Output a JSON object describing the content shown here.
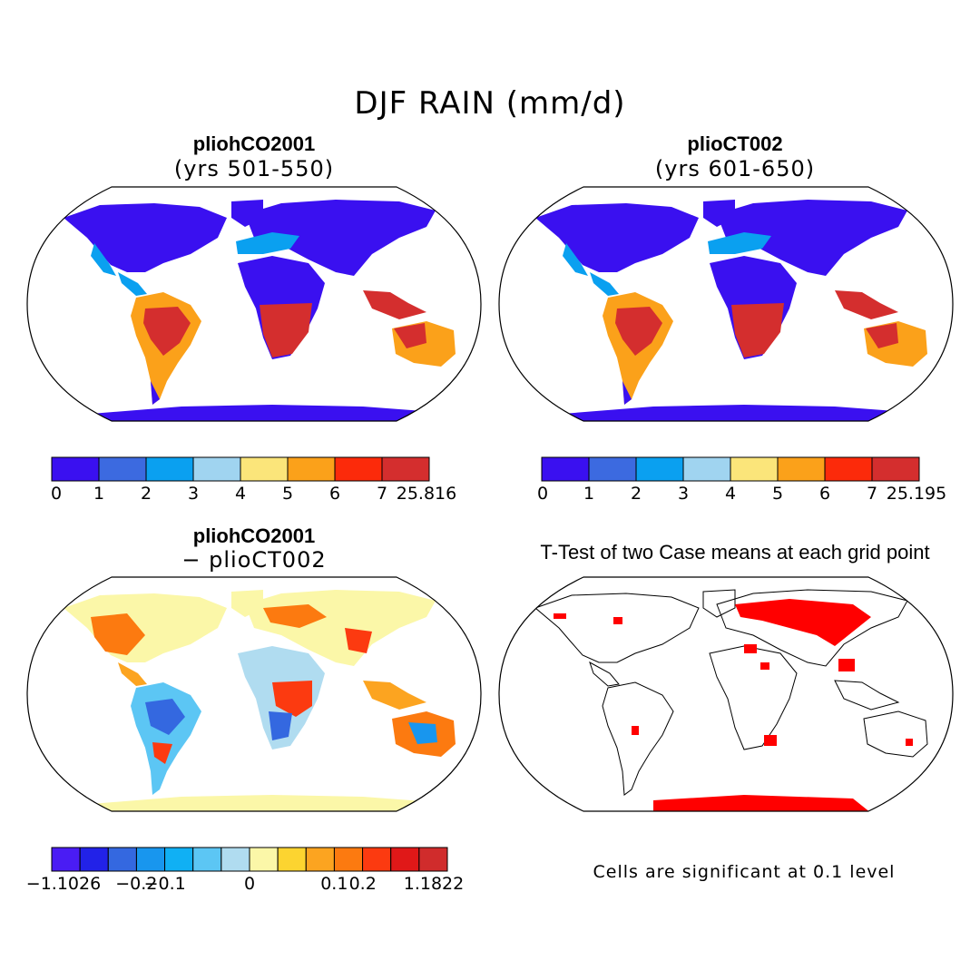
{
  "figure": {
    "title": "DJF RAIN (mm/d)",
    "note": "Cells are significant at 0.1 level"
  },
  "panels": {
    "p1": {
      "title": "pliohCO2001",
      "subtitle": "(yrs 501-550)"
    },
    "p2": {
      "title": "plioCT002",
      "subtitle": "(yrs 601-650)"
    },
    "p3": {
      "title": "pliohCO2001",
      "subtitle": "− plioCT002"
    },
    "p4": {
      "title": "T-Test of two Case means at each grid point"
    }
  },
  "colorbars": {
    "abs1": {
      "colors": [
        "#3a10f0",
        "#3c6ae0",
        "#0aa0f0",
        "#a0d4f0",
        "#fbe57a",
        "#fba11a",
        "#fc2a0a",
        "#d42e2e"
      ],
      "labels": [
        "0",
        "1",
        "2",
        "3",
        "4",
        "5",
        "6",
        "7",
        "25.816"
      ]
    },
    "abs2": {
      "colors": [
        "#3a10f0",
        "#3c6ae0",
        "#0aa0f0",
        "#a0d4f0",
        "#fbe57a",
        "#fba11a",
        "#fc2a0a",
        "#d42e2e"
      ],
      "labels": [
        "0",
        "1",
        "2",
        "3",
        "4",
        "5",
        "6",
        "7",
        "25.195"
      ]
    },
    "diff": {
      "colors": [
        "#4a1cf4",
        "#2222e8",
        "#3468e0",
        "#1896ee",
        "#10b0f4",
        "#5cc6f4",
        "#b0dcf0",
        "#fbf7a8",
        "#fcd430",
        "#fca420",
        "#fc7a10",
        "#fc3a10",
        "#e01818",
        "#d02c2c"
      ],
      "labels": [
        "−1.1026",
        "−0.2",
        "−0.1",
        "0",
        "0.1",
        "0.2",
        "1.1822"
      ]
    }
  },
  "map_colors": {
    "absolute_panels": {
      "arid": "#3a10f0",
      "moderate": "#0aa0f0",
      "wet": "#fba11a",
      "very_wet": "#d42e2e"
    },
    "difference_panel": {
      "neutral": "#fbf7a8",
      "wetter": "#fc3a10",
      "drier": "#3468e0"
    },
    "ttest_panel": {
      "significant": "#ff0000"
    }
  }
}
